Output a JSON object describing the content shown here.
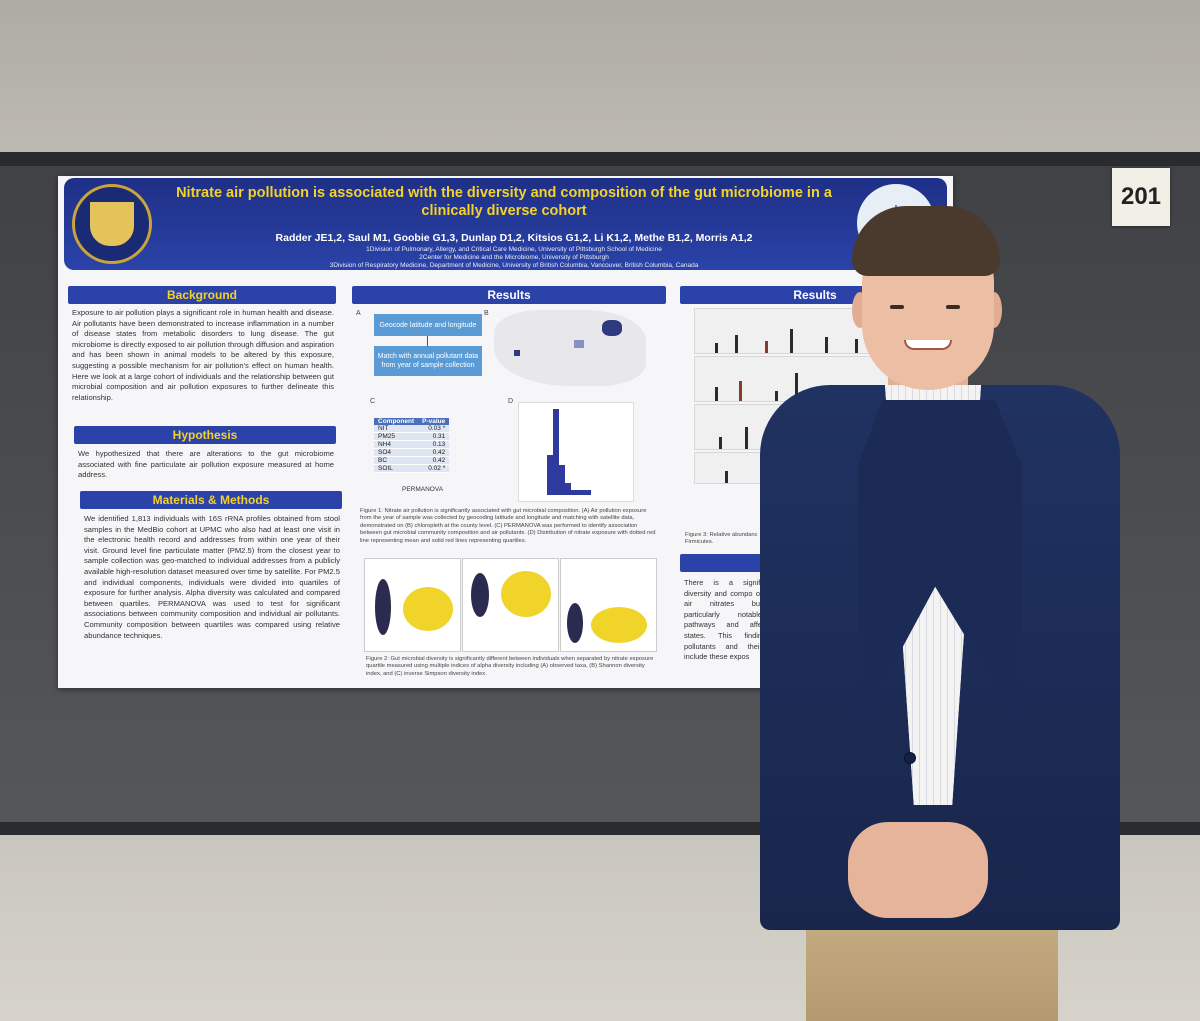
{
  "board_number": "201",
  "poster": {
    "university_logo_text": "UNIVERSITY OF PITTSBURGH",
    "title": "Nitrate air pollution is associated with the diversity and composition of the gut microbiome in a clinically diverse cohort",
    "authors": "Radder JE1,2, Saul M1, Goobie G1,3, Dunlap D1,2, Kitsios G1,2, Li K1,2, Methe B1,2, Morris A1,2",
    "affiliations": [
      "1Division of Pulmonary, Allergy, and Critical Care Medicine, University of Pittsburgh School of Medicine",
      "2Center for Medicine and the Microbiome, University of Pittsburgh",
      "3Division of Respiratory Medicine, Department of Medicine, University of British Columbia, Vancouver, British Columbia, Canada"
    ],
    "sections": {
      "background_title": "Background",
      "background_text": "Exposure to air pollution plays a significant role in human health and disease. Air pollutants have been demonstrated to increase inflammation in a number of disease states from metabolic disorders to lung disease. The gut microbiome is directly exposed to air pollution through diffusion and aspiration and has been shown in animal models to be altered by this exposure, suggesting a possible mechanism for air pollution's effect on human health. Here we look at a large cohort of individuals and the relationship between gut microbial composition and air pollution exposures to further delineate this relationship.",
      "hypothesis_title": "Hypothesis",
      "hypothesis_text": "We hypothesized that there are alterations to the gut microbiome associated with fine particulate air pollution exposure measured at home address.",
      "methods_title": "Materials & Methods",
      "methods_text": "We identified 1,813 individuals with 16S rRNA profiles obtained from stool samples in the MedBio cohort at UPMC who also had at least one visit in the electronic health record and addresses from within one year of their visit. Ground level fine particulate matter (PM2.5) from the closest year to sample collection was geo-matched to individual addresses from a publicly available high-resolution dataset measured over time by satellite. For PM2.5 and individual components, individuals were divided into quartiles of exposure for further analysis. Alpha diversity was calculated and compared between quartiles. PERMANOVA was used to test for significant associations between community composition and individual air pollutants. Community composition between quartiles was compared using relative abundance techniques.",
      "results_title": "Results",
      "results2_title": "Results"
    },
    "figure1": {
      "panel_a": "A",
      "panel_b": "B",
      "panel_c": "C",
      "panel_d": "D",
      "flow_step1": "Geocode latitude and longitude",
      "flow_step2": "Match with annual pollutant data from year of sample collection",
      "table_header": [
        "Component",
        "P-value"
      ],
      "table_rows": [
        [
          "NIT",
          "0.03 *"
        ],
        [
          "PM25",
          "0.31"
        ],
        [
          "NH4",
          "0.13"
        ],
        [
          "SO4",
          "0.42"
        ],
        [
          "BC",
          "0.42"
        ],
        [
          "SOIL",
          "0.02 *"
        ]
      ],
      "table_caption": "PERMANOVA",
      "caption": "Figure 1: Nitrate air pollution is significantly associated with gut microbial composition. (A) Air pollution exposure from the year of sample was collected by geocoding latitude and longitude and matching with satellite data, demonstrated on (B) chloropleth at the county level. (C) PERMANOVA was performed to identify association between gut microbial community composition and air pollutants. (D) Distribution of nitrate exposure with dotted red line representing mean and solid red lines representing quartiles."
    },
    "figure2": {
      "caption": "Figure 2: Gut microbial diversity is significantly different between individuals when separated by nitrate exposure quartile measured using multiple indices of alpha diversity including (A) observed taxa, (B) Shannon diversity index, and (C) inverse Simpson diversity index."
    },
    "figure3": {
      "caption": "Figure 3: Relative abundanc Firmicutes."
    },
    "conclusion_text": "There is a signifi diversity and compo of air nitrates but particularly notable pathways and affe states. This findin pollutants and their include these expos"
  }
}
